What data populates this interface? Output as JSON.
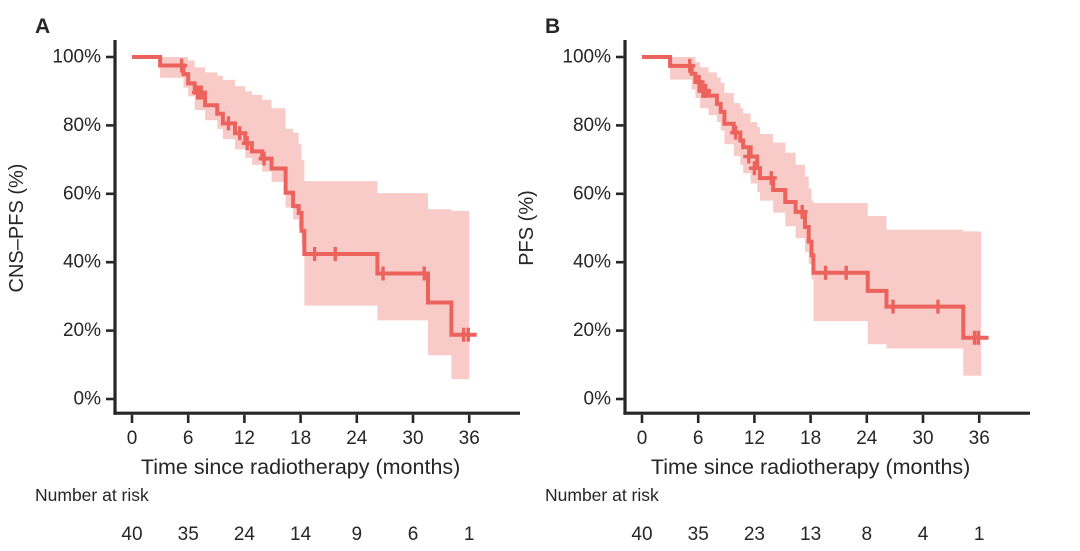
{
  "figure": {
    "background": "#ffffff",
    "text_color": "#262626",
    "axis_color": "#262626",
    "curve_color": "#ec625c",
    "band_color": "#f9cbc8"
  },
  "chart_data": [
    {
      "type": "line",
      "subtype": "kaplan-meier-step-with-ci-band",
      "panel_label": "A",
      "xlabel": "Time since radiotherapy (months)",
      "ylabel": "CNS–PFS (%)",
      "x_ticks": [
        0,
        6,
        12,
        18,
        24,
        30,
        36
      ],
      "y_tick_labels": [
        "0%",
        "20%",
        "40%",
        "60%",
        "80%",
        "100%"
      ],
      "y_ticks_pct": [
        0,
        20,
        40,
        60,
        80,
        100
      ],
      "xlim_months": [
        0,
        39
      ],
      "ylim_pct": [
        0,
        100
      ],
      "grid": false,
      "legend": "none",
      "survival_steps_pct": [
        [
          0,
          100
        ],
        [
          3.0,
          97.5
        ],
        [
          5.5,
          95.0
        ],
        [
          6.0,
          92.3
        ],
        [
          6.7,
          89.6
        ],
        [
          7.8,
          85.9
        ],
        [
          9.1,
          83.4
        ],
        [
          9.7,
          80.6
        ],
        [
          11.0,
          77.7
        ],
        [
          12.1,
          74.8
        ],
        [
          12.8,
          72.4
        ],
        [
          13.9,
          70.3
        ],
        [
          14.9,
          67.4
        ],
        [
          16.4,
          60.3
        ],
        [
          17.2,
          56.4
        ],
        [
          17.8,
          54.4
        ],
        [
          18.1,
          49.2
        ],
        [
          18.4,
          42.4
        ],
        [
          26.2,
          36.7
        ],
        [
          31.6,
          28.2
        ],
        [
          34.1,
          18.8
        ]
      ],
      "curve_end_month": 36.8,
      "censor_marks_pct": [
        [
          5.3,
          97.5
        ],
        [
          7.0,
          89.6
        ],
        [
          7.2,
          89.6
        ],
        [
          7.4,
          89.6
        ],
        [
          10.3,
          80.6
        ],
        [
          11.5,
          77.7
        ],
        [
          12.3,
          74.8
        ],
        [
          14.1,
          70.3
        ],
        [
          19.5,
          42.4
        ],
        [
          21.7,
          42.4
        ],
        [
          26.8,
          36.7
        ],
        [
          31.2,
          36.7
        ],
        [
          35.4,
          18.8
        ],
        [
          35.9,
          18.8
        ]
      ],
      "ci_band_pct": [
        [
          3.0,
          100,
          93.9
        ],
        [
          5.5,
          100,
          91.0
        ],
        [
          6.0,
          99.0,
          88.5
        ],
        [
          6.7,
          97.0,
          84.5
        ],
        [
          7.8,
          95.5,
          81.5
        ],
        [
          9.1,
          94.5,
          79.0
        ],
        [
          9.7,
          93.3,
          76.0
        ],
        [
          11.0,
          91.5,
          73.0
        ],
        [
          12.1,
          90.0,
          70.5
        ],
        [
          12.8,
          88.9,
          68.5
        ],
        [
          13.9,
          87.5,
          66.5
        ],
        [
          14.9,
          85.0,
          63.5
        ],
        [
          16.4,
          79.0,
          56.0
        ],
        [
          17.2,
          77.8,
          52.5
        ],
        [
          17.8,
          74.5,
          50.0
        ],
        [
          18.1,
          70.0,
          45.0
        ],
        [
          18.4,
          63.7,
          27.3
        ],
        [
          26.2,
          60.2,
          23.0
        ],
        [
          31.6,
          55.5,
          12.8
        ],
        [
          34.1,
          55.0,
          5.8
        ]
      ],
      "band_end_month": 36.0,
      "number_at_risk": {
        "label": "Number at risk",
        "times": [
          0,
          6,
          12,
          18,
          24,
          30,
          36
        ],
        "counts": [
          40,
          35,
          24,
          14,
          9,
          6,
          1
        ]
      }
    },
    {
      "type": "line",
      "subtype": "kaplan-meier-step-with-ci-band",
      "panel_label": "B",
      "xlabel": "Time since radiotherapy (months)",
      "ylabel": "PFS (%)",
      "x_ticks": [
        0,
        6,
        12,
        18,
        24,
        30,
        36
      ],
      "y_tick_labels": [
        "0%",
        "20%",
        "40%",
        "60%",
        "80%",
        "100%"
      ],
      "y_ticks_pct": [
        0,
        20,
        40,
        60,
        80,
        100
      ],
      "xlim_months": [
        0,
        39
      ],
      "ylim_pct": [
        0,
        100
      ],
      "grid": false,
      "legend": "none",
      "survival_steps_pct": [
        [
          0,
          100
        ],
        [
          3.0,
          97.4
        ],
        [
          5.3,
          95.1
        ],
        [
          5.7,
          92.7
        ],
        [
          6.2,
          90.1
        ],
        [
          7.1,
          88.7
        ],
        [
          8.0,
          86.3
        ],
        [
          8.4,
          84.0
        ],
        [
          8.8,
          80.5
        ],
        [
          9.8,
          77.9
        ],
        [
          10.5,
          75.6
        ],
        [
          10.8,
          73.6
        ],
        [
          11.6,
          70.9
        ],
        [
          12.3,
          67.5
        ],
        [
          12.6,
          64.6
        ],
        [
          14.0,
          61.1
        ],
        [
          15.3,
          57.6
        ],
        [
          16.4,
          54.7
        ],
        [
          17.4,
          50.3
        ],
        [
          17.8,
          46.0
        ],
        [
          18.1,
          42.0
        ],
        [
          18.3,
          36.9
        ],
        [
          24.1,
          31.6
        ],
        [
          26.1,
          27.0
        ],
        [
          34.3,
          17.9
        ]
      ],
      "curve_end_month": 37.0,
      "censor_marks_pct": [
        [
          5.1,
          97.4
        ],
        [
          6.1,
          92.7
        ],
        [
          6.5,
          90.1
        ],
        [
          6.8,
          90.1
        ],
        [
          10.0,
          77.9
        ],
        [
          11.4,
          70.9
        ],
        [
          12.0,
          67.5
        ],
        [
          13.8,
          64.6
        ],
        [
          17.1,
          54.7
        ],
        [
          19.6,
          36.9
        ],
        [
          21.8,
          36.9
        ],
        [
          26.8,
          27.0
        ],
        [
          31.6,
          27.0
        ],
        [
          35.5,
          17.9
        ],
        [
          35.9,
          17.9
        ]
      ],
      "ci_band_pct": [
        [
          3.0,
          100,
          93.4
        ],
        [
          5.3,
          100,
          90.5
        ],
        [
          5.7,
          98.5,
          88.0
        ],
        [
          6.2,
          97.0,
          85.0
        ],
        [
          7.1,
          95.5,
          83.0
        ],
        [
          8.0,
          94.0,
          81.0
        ],
        [
          8.4,
          92.5,
          78.5
        ],
        [
          8.8,
          89.5,
          74.5
        ],
        [
          9.8,
          86.5,
          71.0
        ],
        [
          10.5,
          85.0,
          68.5
        ],
        [
          10.8,
          83.5,
          66.0
        ],
        [
          11.6,
          81.0,
          63.0
        ],
        [
          12.3,
          79.5,
          60.5
        ],
        [
          12.6,
          77.5,
          58.0
        ],
        [
          14.0,
          75.0,
          54.5
        ],
        [
          15.3,
          72.0,
          50.5
        ],
        [
          16.4,
          68.5,
          47.0
        ],
        [
          17.4,
          65.0,
          43.0
        ],
        [
          17.8,
          61.5,
          39.5
        ],
        [
          18.1,
          58.0,
          35.0
        ],
        [
          18.3,
          57.3,
          22.8
        ],
        [
          24.1,
          53.5,
          16.0
        ],
        [
          26.1,
          49.5,
          14.8
        ],
        [
          34.3,
          49.0,
          6.8
        ]
      ],
      "band_end_month": 36.2,
      "number_at_risk": {
        "label": "Number at risk",
        "times": [
          0,
          6,
          12,
          18,
          24,
          30,
          36
        ],
        "counts": [
          40,
          35,
          23,
          13,
          8,
          4,
          1
        ]
      }
    }
  ]
}
